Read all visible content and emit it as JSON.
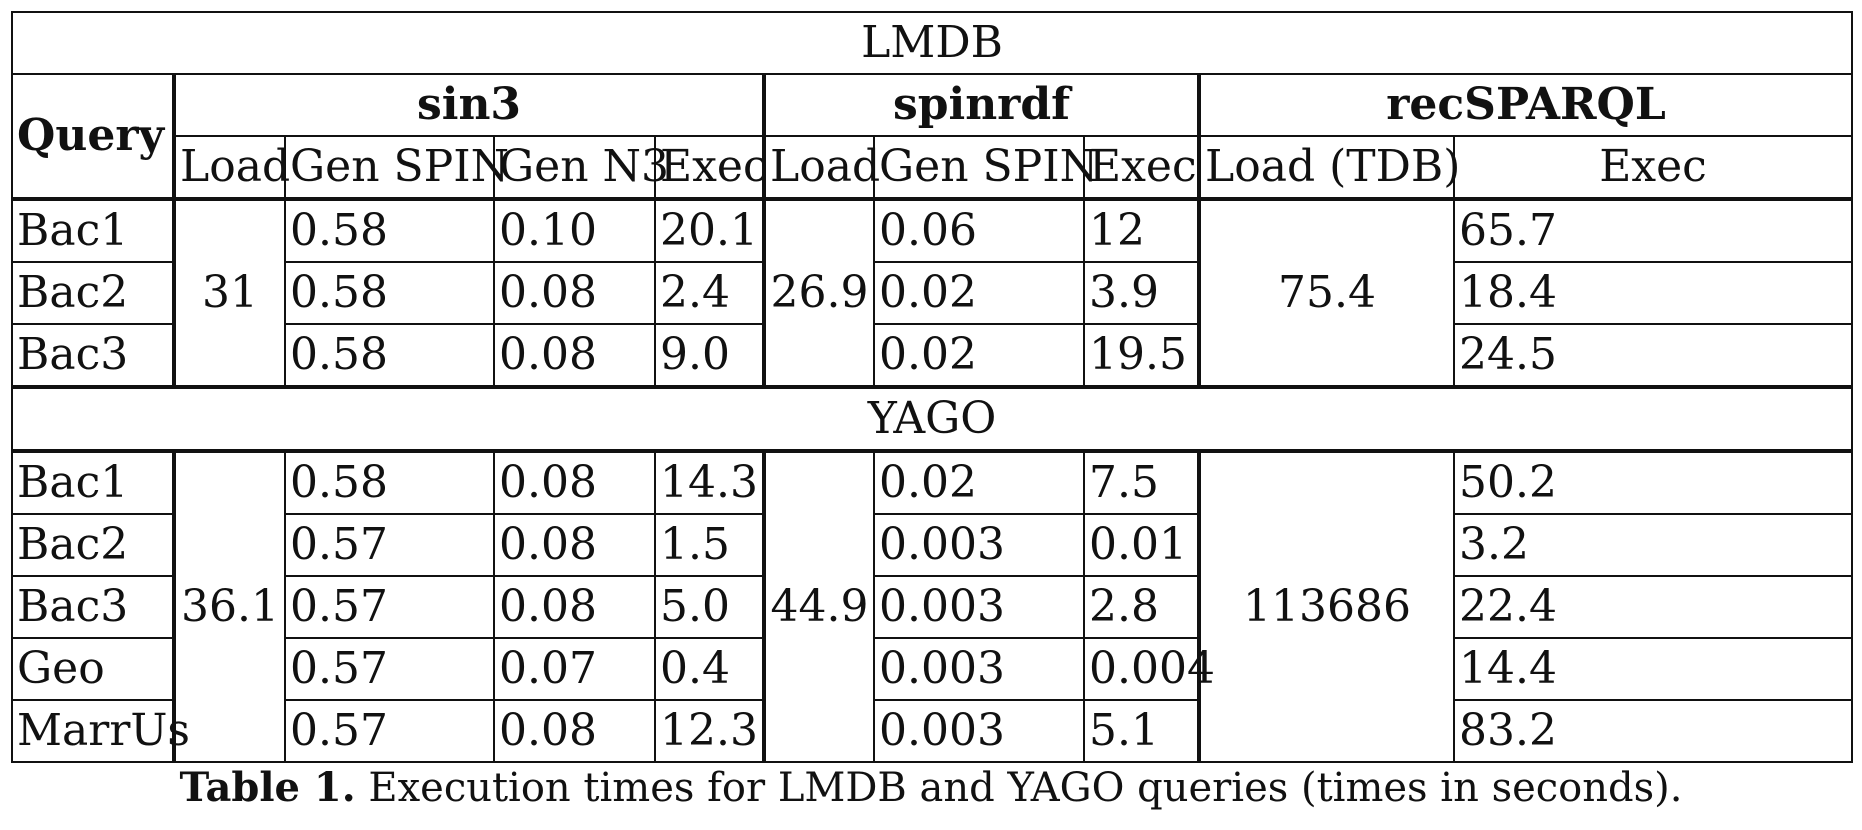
{
  "table": {
    "sections": [
      {
        "name": "LMDB",
        "sin3_load": "31",
        "spinrdf_load": "26.9",
        "rec_load": "75.4",
        "rows": [
          {
            "q": "Bac1",
            "gen_spin": "0.58",
            "gen_n3": "0.10",
            "exec": "20.1",
            "sp_gen": "0.06",
            "sp_exec": "12",
            "rec_exec": "65.7"
          },
          {
            "q": "Bac2",
            "gen_spin": "0.58",
            "gen_n3": "0.08",
            "exec": "2.4",
            "sp_gen": "0.02",
            "sp_exec": "3.9",
            "rec_exec": "18.4"
          },
          {
            "q": "Bac3",
            "gen_spin": "0.58",
            "gen_n3": "0.08",
            "exec": "9.0",
            "sp_gen": "0.02",
            "sp_exec": "19.5",
            "rec_exec": "24.5"
          }
        ]
      },
      {
        "name": "YAGO",
        "sin3_load": "36.1",
        "spinrdf_load": "44.9",
        "rec_load": "113686",
        "rows": [
          {
            "q": "Bac1",
            "gen_spin": "0.58",
            "gen_n3": "0.08",
            "exec": "14.3",
            "sp_gen": "0.02",
            "sp_exec": "7.5",
            "rec_exec": "50.2"
          },
          {
            "q": "Bac2",
            "gen_spin": "0.57",
            "gen_n3": "0.08",
            "exec": "1.5",
            "sp_gen": "0.003",
            "sp_exec": "0.01",
            "rec_exec": "3.2"
          },
          {
            "q": "Bac3",
            "gen_spin": "0.57",
            "gen_n3": "0.08",
            "exec": "5.0",
            "sp_gen": "0.003",
            "sp_exec": "2.8",
            "rec_exec": "22.4"
          },
          {
            "q": "Geo",
            "gen_spin": "0.57",
            "gen_n3": "0.07",
            "exec": "0.4",
            "sp_gen": "0.003",
            "sp_exec": "0.004",
            "rec_exec": "14.4"
          },
          {
            "q": "MarrUs",
            "gen_spin": "0.57",
            "gen_n3": "0.08",
            "exec": "12.3",
            "sp_gen": "0.003",
            "sp_exec": "5.1",
            "rec_exec": "83.2"
          }
        ]
      }
    ],
    "headers": {
      "query": "Query",
      "groups": {
        "sin3": "sin3",
        "spinrdf": "spinrdf",
        "recsparql": "recSPARQL"
      },
      "sub": {
        "sin3": [
          "Load",
          "Gen SPIN",
          "Gen N3",
          "Exec"
        ],
        "spinrdf": [
          "Load",
          "Gen SPIN",
          "Exec"
        ],
        "recsparql": [
          "Load (TDB)",
          "Exec"
        ]
      }
    }
  },
  "caption": {
    "label": "Table 1.",
    "text": " Execution times for LMDB and YAGO queries (times in seconds)."
  }
}
